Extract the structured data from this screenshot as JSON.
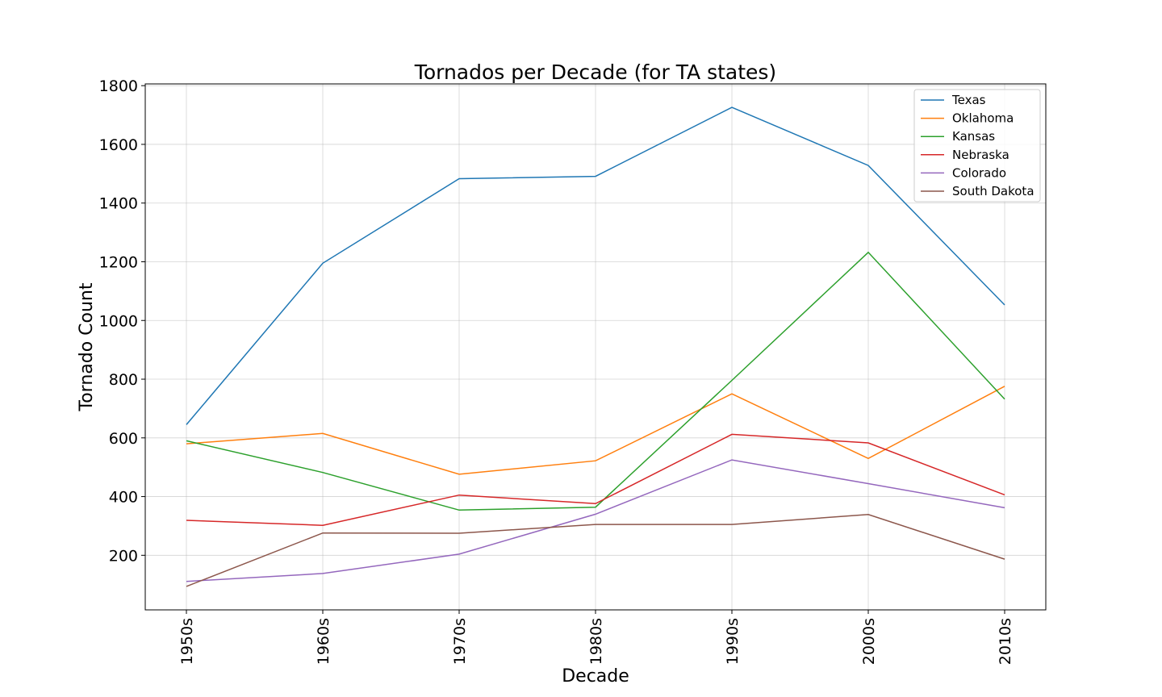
{
  "chart_data": {
    "type": "line",
    "title": "Tornados per Decade (for TA states)",
    "xlabel": "Decade",
    "ylabel": "Tornado Count",
    "categories": [
      "1950s",
      "1960s",
      "1970s",
      "1980s",
      "1990s",
      "2000s",
      "2010s"
    ],
    "ylim": [
      14,
      1806
    ],
    "yticks": [
      200,
      400,
      600,
      800,
      1000,
      1200,
      1400,
      1600,
      1800
    ],
    "grid": true,
    "legend_position": "top-right",
    "series": [
      {
        "name": "Texas",
        "color": "#1f77b4",
        "values": [
          645,
          1195,
          1483,
          1491,
          1726,
          1528,
          1053
        ]
      },
      {
        "name": "Oklahoma",
        "color": "#ff7f0e",
        "values": [
          580,
          615,
          476,
          522,
          750,
          530,
          776
        ]
      },
      {
        "name": "Kansas",
        "color": "#2ca02c",
        "values": [
          590,
          482,
          354,
          364,
          796,
          1232,
          732
        ]
      },
      {
        "name": "Nebraska",
        "color": "#d62728",
        "values": [
          319,
          302,
          405,
          376,
          612,
          583,
          406
        ]
      },
      {
        "name": "Colorado",
        "color": "#9467bd",
        "values": [
          111,
          138,
          204,
          340,
          525,
          444,
          362
        ]
      },
      {
        "name": "South Dakota",
        "color": "#8c564b",
        "values": [
          94,
          276,
          275,
          305,
          305,
          339,
          187
        ]
      }
    ]
  }
}
